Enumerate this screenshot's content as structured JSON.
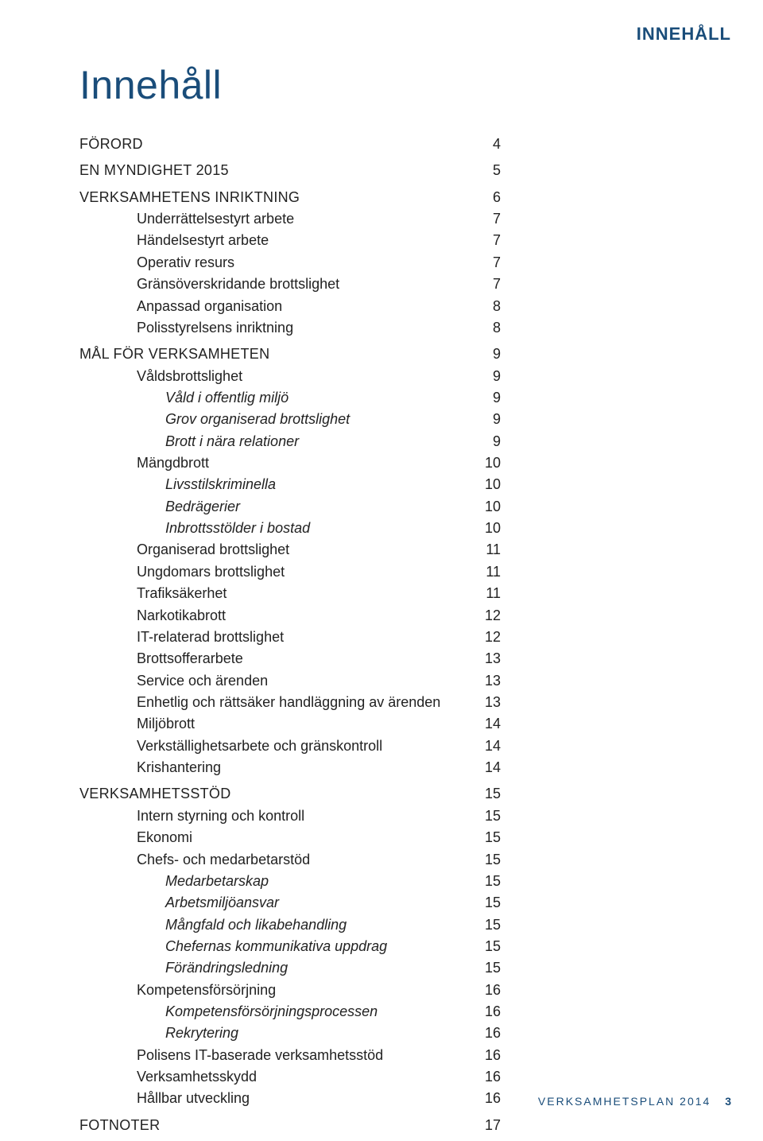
{
  "colors": {
    "brand_blue": "#1a4d7a",
    "text": "#222222",
    "background": "#ffffff"
  },
  "typography": {
    "body_fontsize_pt": 14,
    "title_fontsize_pt": 38,
    "header_label_fontsize_pt": 16,
    "footer_fontsize_pt": 11,
    "font_family": "sans-serif"
  },
  "header_label": "INNEHÅLL",
  "main_title": "Innehåll",
  "footer_text": "VERKSAMHETSPLAN 2014",
  "footer_page": "3",
  "toc": [
    {
      "label": "Förord",
      "page": "4",
      "level": 0,
      "caps": true
    },
    {
      "label": "En myndighet 2015",
      "page": "5",
      "level": 0,
      "caps": true,
      "gap": true
    },
    {
      "label": "Verksamhetens inriktning",
      "page": "6",
      "level": 0,
      "caps": true,
      "gap": true
    },
    {
      "label": "Underrättelsestyrt arbete",
      "page": "7",
      "level": 1
    },
    {
      "label": "Händelsestyrt arbete",
      "page": "7",
      "level": 1
    },
    {
      "label": "Operativ resurs",
      "page": "7",
      "level": 1
    },
    {
      "label": "Gränsöverskridande brottslighet",
      "page": "7",
      "level": 1
    },
    {
      "label": "Anpassad organisation",
      "page": "8",
      "level": 1
    },
    {
      "label": "Polisstyrelsens inriktning",
      "page": "8",
      "level": 1
    },
    {
      "label": "Mål för verksamheten",
      "page": "9",
      "level": 0,
      "caps": true,
      "gap": true
    },
    {
      "label": "Våldsbrottslighet",
      "page": "9",
      "level": 1
    },
    {
      "label": "Våld i offentlig miljö",
      "page": "9",
      "level": 2,
      "italic": true
    },
    {
      "label": "Grov organiserad brottslighet",
      "page": "9",
      "level": 2,
      "italic": true
    },
    {
      "label": "Brott i nära relationer",
      "page": "9",
      "level": 2,
      "italic": true
    },
    {
      "label": "Mängdbrott",
      "page": "10",
      "level": 1
    },
    {
      "label": "Livsstilskriminella",
      "page": "10",
      "level": 2,
      "italic": true
    },
    {
      "label": "Bedrägerier",
      "page": "10",
      "level": 2,
      "italic": true
    },
    {
      "label": "Inbrottsstölder i bostad",
      "page": "10",
      "level": 2,
      "italic": true
    },
    {
      "label": "Organiserad brottslighet",
      "page": "11",
      "level": 1
    },
    {
      "label": "Ungdomars brottslighet",
      "page": "11",
      "level": 1
    },
    {
      "label": "Trafiksäkerhet",
      "page": "11",
      "level": 1
    },
    {
      "label": "Narkotikabrott",
      "page": "12",
      "level": 1
    },
    {
      "label": "IT-relaterad brottslighet",
      "page": "12",
      "level": 1
    },
    {
      "label": "Brottsofferarbete",
      "page": "13",
      "level": 1
    },
    {
      "label": "Service och ärenden",
      "page": "13",
      "level": 1
    },
    {
      "label": "Enhetlig och rättsäker handläggning av ärenden",
      "page": "13",
      "level": 1
    },
    {
      "label": "Miljöbrott",
      "page": "14",
      "level": 1
    },
    {
      "label": "Verkställighetsarbete och gränskontroll",
      "page": "14",
      "level": 1
    },
    {
      "label": "Krishantering",
      "page": "14",
      "level": 1
    },
    {
      "label": "Verksamhetsstöd",
      "page": "15",
      "level": 0,
      "caps": true,
      "gap": true
    },
    {
      "label": "Intern styrning och kontroll",
      "page": "15",
      "level": 1
    },
    {
      "label": "Ekonomi",
      "page": "15",
      "level": 1
    },
    {
      "label": "Chefs- och medarbetarstöd",
      "page": "15",
      "level": 1
    },
    {
      "label": "Medarbetarskap",
      "page": "15",
      "level": 2,
      "italic": true
    },
    {
      "label": "Arbetsmiljöansvar",
      "page": "15",
      "level": 2,
      "italic": true
    },
    {
      "label": "Mångfald och likabehandling",
      "page": "15",
      "level": 2,
      "italic": true
    },
    {
      "label": "Chefernas kommunikativa uppdrag",
      "page": "15",
      "level": 2,
      "italic": true
    },
    {
      "label": "Förändringsledning",
      "page": "15",
      "level": 2,
      "italic": true
    },
    {
      "label": "Kompetensförsörjning",
      "page": "16",
      "level": 1
    },
    {
      "label": "Kompetensförsörjningsprocessen",
      "page": "16",
      "level": 2,
      "italic": true
    },
    {
      "label": "Rekrytering",
      "page": "16",
      "level": 2,
      "italic": true
    },
    {
      "label": "Polisens IT-baserade verksamhetsstöd",
      "page": "16",
      "level": 1
    },
    {
      "label": "Verksamhetsskydd",
      "page": "16",
      "level": 1
    },
    {
      "label": "Hållbar utveckling",
      "page": "16",
      "level": 1
    },
    {
      "label": "Fotnoter",
      "page": "17",
      "level": 0,
      "caps": true,
      "gap": true
    }
  ]
}
